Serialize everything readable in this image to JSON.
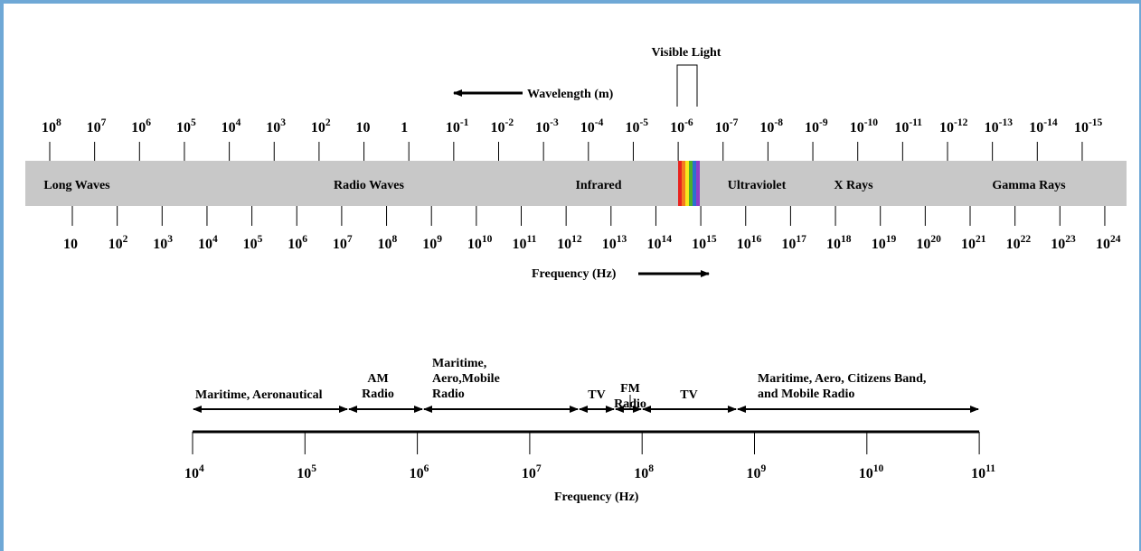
{
  "spectrum": {
    "visible_label": "Visible Light",
    "wavelength_label": "Wavelength (m)",
    "frequency_label": "Frequency (Hz)",
    "wavelength_ticks": [
      {
        "base": "10",
        "exp": "8"
      },
      {
        "base": "10",
        "exp": "7"
      },
      {
        "base": "10",
        "exp": "6"
      },
      {
        "base": "10",
        "exp": "5"
      },
      {
        "base": "10",
        "exp": "4"
      },
      {
        "base": "10",
        "exp": "3"
      },
      {
        "base": "10",
        "exp": "2"
      },
      {
        "base": "10",
        "exp": ""
      },
      {
        "base": "1",
        "exp": ""
      },
      {
        "base": "10",
        "exp": "-1"
      },
      {
        "base": "10",
        "exp": "-2"
      },
      {
        "base": "10",
        "exp": "-3"
      },
      {
        "base": "10",
        "exp": "-4"
      },
      {
        "base": "10",
        "exp": "-5"
      },
      {
        "base": "10",
        "exp": "-6"
      },
      {
        "base": "10",
        "exp": "-7"
      },
      {
        "base": "10",
        "exp": "-8"
      },
      {
        "base": "10",
        "exp": "-9"
      },
      {
        "base": "10",
        "exp": "-10"
      },
      {
        "base": "10",
        "exp": "-11"
      },
      {
        "base": "10",
        "exp": "-12"
      },
      {
        "base": "10",
        "exp": "-13"
      },
      {
        "base": "10",
        "exp": "-14"
      },
      {
        "base": "10",
        "exp": "-15"
      }
    ],
    "frequency_ticks": [
      {
        "base": "10",
        "exp": ""
      },
      {
        "base": "10",
        "exp": "2"
      },
      {
        "base": "10",
        "exp": "3"
      },
      {
        "base": "10",
        "exp": "4"
      },
      {
        "base": "10",
        "exp": "5"
      },
      {
        "base": "10",
        "exp": "6"
      },
      {
        "base": "10",
        "exp": "7"
      },
      {
        "base": "10",
        "exp": "8"
      },
      {
        "base": "10",
        "exp": "9"
      },
      {
        "base": "10",
        "exp": "10"
      },
      {
        "base": "10",
        "exp": "11"
      },
      {
        "base": "10",
        "exp": "12"
      },
      {
        "base": "10",
        "exp": "13"
      },
      {
        "base": "10",
        "exp": "14"
      },
      {
        "base": "10",
        "exp": "15"
      },
      {
        "base": "10",
        "exp": "16"
      },
      {
        "base": "10",
        "exp": "17"
      },
      {
        "base": "10",
        "exp": "18"
      },
      {
        "base": "10",
        "exp": "19"
      },
      {
        "base": "10",
        "exp": "20"
      },
      {
        "base": "10",
        "exp": "21"
      },
      {
        "base": "10",
        "exp": "22"
      },
      {
        "base": "10",
        "exp": "23"
      },
      {
        "base": "10",
        "exp": "24"
      }
    ],
    "regions": [
      "Long Waves",
      "Radio Waves",
      "Infrared",
      "Ultraviolet",
      "X Rays",
      "Gamma Rays"
    ],
    "visible_colors": [
      "#e8231f",
      "#f47a20",
      "#f8e71c",
      "#4caf2a",
      "#2d6fd0",
      "#8e3ec8"
    ],
    "bar_color": "#c8c8c8"
  },
  "radio": {
    "frequency_label": "Frequency (Hz)",
    "ticks": [
      {
        "base": "10",
        "exp": "4"
      },
      {
        "base": "10",
        "exp": "5"
      },
      {
        "base": "10",
        "exp": "6"
      },
      {
        "base": "10",
        "exp": "7"
      },
      {
        "base": "10",
        "exp": "8"
      },
      {
        "base": "10",
        "exp": "9"
      },
      {
        "base": "10",
        "exp": "10"
      },
      {
        "base": "10",
        "exp": "11"
      }
    ],
    "bands": [
      {
        "lines": [
          "Maritime, Aeronautical"
        ]
      },
      {
        "lines": [
          "AM",
          "Radio"
        ]
      },
      {
        "lines": [
          "Maritime,",
          "Aero,Mobile",
          "Radio"
        ]
      },
      {
        "lines": [
          "TV"
        ]
      },
      {
        "lines": [
          "FM",
          "Radio"
        ]
      },
      {
        "lines": [
          "TV"
        ]
      },
      {
        "lines": [
          "Maritime, Aero, Citizens Band,",
          "and Mobile Radio"
        ]
      }
    ]
  }
}
